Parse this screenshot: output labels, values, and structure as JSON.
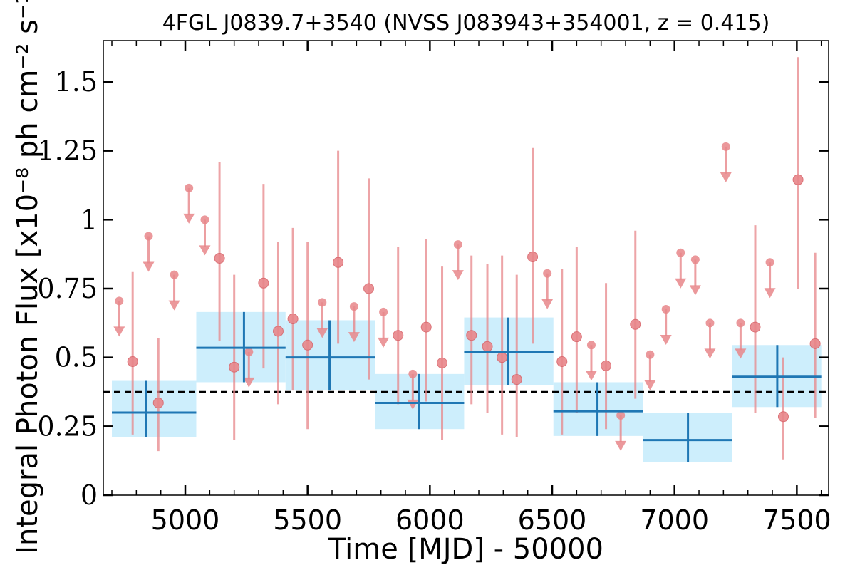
{
  "chart_data": {
    "type": "scatter",
    "title": "4FGL J0839.7+3540 (NVSS J083943+354001, z = 0.415)",
    "xlabel": "Time [MJD] - 50000",
    "ylabel": "Integral Photon Flux [x10⁻⁸ ph cm⁻² s⁻¹]",
    "xlim": [
      4665,
      7630
    ],
    "ylim": [
      0,
      1.65
    ],
    "x_ticks": [
      5000,
      5500,
      6000,
      6500,
      7000,
      7500
    ],
    "x_tick_labels": [
      "5000",
      "5500",
      "6000",
      "6500",
      "7000",
      "7500"
    ],
    "y_ticks": [
      0,
      0.25,
      0.5,
      0.75,
      1,
      1.25,
      1.5
    ],
    "y_tick_labels": [
      "0",
      "0.25",
      "0.5",
      "0.75",
      "1",
      "1.25",
      "1.5"
    ],
    "grid": false,
    "reference_line": {
      "y": 0.375,
      "style": "dashed",
      "color": "#000000"
    },
    "colors": {
      "short_bins": "#e8868a",
      "long_bins": "#1f77b4",
      "long_bin_band": "#cdeefc"
    },
    "series": [
      {
        "points": [
          {
            "x": 4785,
            "y": 0.485,
            "lo": 0.22,
            "hi": 0.81
          },
          {
            "x": 4890,
            "y": 0.335,
            "lo": 0.16,
            "hi": 0.57
          },
          {
            "x": 5140,
            "y": 0.86,
            "lo": 0.56,
            "hi": 1.21
          },
          {
            "x": 5200,
            "y": 0.465,
            "lo": 0.2,
            "hi": 0.8
          },
          {
            "x": 5320,
            "y": 0.77,
            "lo": 0.46,
            "hi": 1.13
          },
          {
            "x": 5380,
            "y": 0.595,
            "lo": 0.33,
            "hi": 0.92
          },
          {
            "x": 5440,
            "y": 0.64,
            "lo": 0.38,
            "hi": 0.97
          },
          {
            "x": 5500,
            "y": 0.545,
            "lo": 0.24,
            "hi": 0.92
          },
          {
            "x": 5625,
            "y": 0.845,
            "lo": 0.55,
            "hi": 1.25
          },
          {
            "x": 5750,
            "y": 0.75,
            "lo": 0.42,
            "hi": 1.15
          },
          {
            "x": 5870,
            "y": 0.58,
            "lo": 0.33,
            "hi": 0.9
          },
          {
            "x": 5985,
            "y": 0.61,
            "lo": 0.34,
            "hi": 0.93
          },
          {
            "x": 6050,
            "y": 0.48,
            "lo": 0.2,
            "hi": 0.83
          },
          {
            "x": 6170,
            "y": 0.58,
            "lo": 0.33,
            "hi": 0.87
          },
          {
            "x": 6235,
            "y": 0.54,
            "lo": 0.3,
            "hi": 0.84
          },
          {
            "x": 6295,
            "y": 0.5,
            "lo": 0.22,
            "hi": 0.87
          },
          {
            "x": 6355,
            "y": 0.42,
            "lo": 0.21,
            "hi": 0.8
          },
          {
            "x": 6420,
            "y": 0.865,
            "lo": 0.55,
            "hi": 1.26
          },
          {
            "x": 6540,
            "y": 0.485,
            "lo": 0.22,
            "hi": 0.82
          },
          {
            "x": 6600,
            "y": 0.575,
            "lo": 0.3,
            "hi": 0.9
          },
          {
            "x": 6720,
            "y": 0.47,
            "lo": 0.24,
            "hi": 0.77
          },
          {
            "x": 6840,
            "y": 0.62,
            "lo": 0.35,
            "hi": 0.96
          },
          {
            "x": 7330,
            "y": 0.61,
            "lo": 0.3,
            "hi": 0.98
          },
          {
            "x": 7445,
            "y": 0.285,
            "lo": 0.13,
            "hi": 0.5
          },
          {
            "x": 7505,
            "y": 1.145,
            "lo": 0.75,
            "hi": 1.59
          },
          {
            "x": 7575,
            "y": 0.55,
            "lo": 0.28,
            "hi": 0.88
          }
        ],
        "upper_limits": [
          {
            "x": 4730,
            "y": 0.705
          },
          {
            "x": 4850,
            "y": 0.94
          },
          {
            "x": 4955,
            "y": 0.8
          },
          {
            "x": 5015,
            "y": 1.115
          },
          {
            "x": 5080,
            "y": 1.0
          },
          {
            "x": 5260,
            "y": 0.52
          },
          {
            "x": 5560,
            "y": 0.7
          },
          {
            "x": 5690,
            "y": 0.685
          },
          {
            "x": 5810,
            "y": 0.665
          },
          {
            "x": 5930,
            "y": 0.44
          },
          {
            "x": 6115,
            "y": 0.91
          },
          {
            "x": 6480,
            "y": 0.805
          },
          {
            "x": 6660,
            "y": 0.545
          },
          {
            "x": 6780,
            "y": 0.29
          },
          {
            "x": 6900,
            "y": 0.51
          },
          {
            "x": 6965,
            "y": 0.675
          },
          {
            "x": 7025,
            "y": 0.88
          },
          {
            "x": 7085,
            "y": 0.855
          },
          {
            "x": 7145,
            "y": 0.625
          },
          {
            "x": 7210,
            "y": 1.265
          },
          {
            "x": 7270,
            "y": 0.625
          },
          {
            "x": 7390,
            "y": 0.845
          }
        ]
      },
      {
        "bins": [
          {
            "x0": 4700,
            "x1": 5045,
            "x": 4840,
            "y": 0.3,
            "lo": 0.21,
            "hi": 0.415
          },
          {
            "x0": 5045,
            "x1": 5410,
            "x": 5240,
            "y": 0.535,
            "lo": 0.41,
            "hi": 0.665
          },
          {
            "x0": 5410,
            "x1": 5775,
            "x": 5590,
            "y": 0.5,
            "lo": 0.38,
            "hi": 0.635
          },
          {
            "x0": 5775,
            "x1": 6140,
            "x": 5955,
            "y": 0.335,
            "lo": 0.24,
            "hi": 0.44
          },
          {
            "x0": 6140,
            "x1": 6505,
            "x": 6320,
            "y": 0.52,
            "lo": 0.4,
            "hi": 0.645
          },
          {
            "x0": 6505,
            "x1": 6870,
            "x": 6685,
            "y": 0.305,
            "lo": 0.215,
            "hi": 0.41
          },
          {
            "x0": 6870,
            "x1": 7235,
            "x": 7055,
            "y": 0.2,
            "lo": 0.12,
            "hi": 0.3
          },
          {
            "x0": 7235,
            "x1": 7600,
            "x": 7420,
            "y": 0.43,
            "lo": 0.32,
            "hi": 0.545
          }
        ]
      }
    ]
  }
}
